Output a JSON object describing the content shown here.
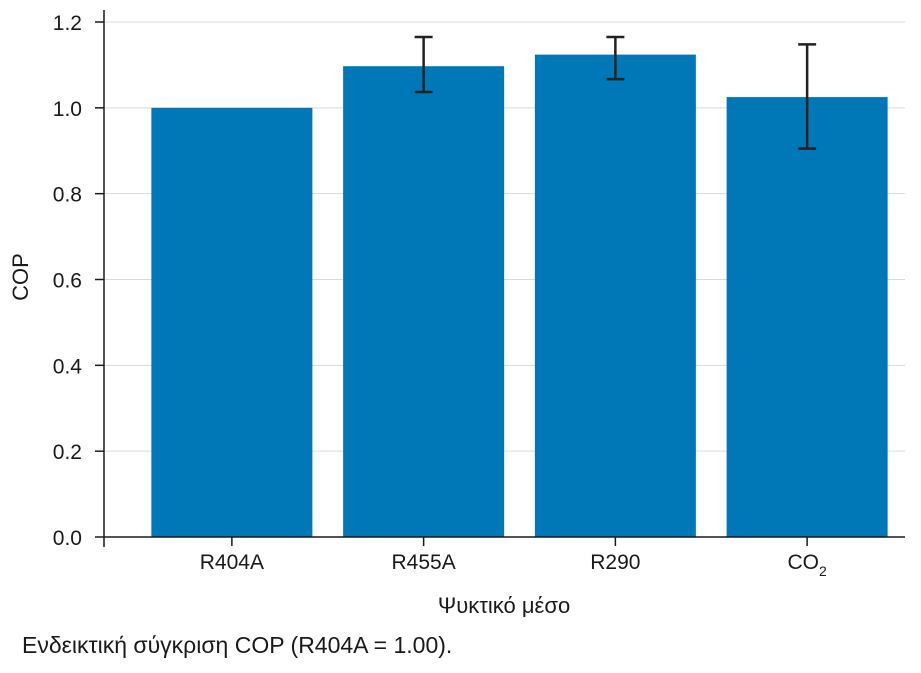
{
  "chart_data": {
    "type": "bar",
    "categories": [
      "R404A",
      "R455A",
      "R290",
      "CO"
    ],
    "category_subscripts": [
      "",
      "",
      "",
      "2"
    ],
    "values": [
      1.0,
      1.097,
      1.124,
      1.025
    ],
    "error_bars": [
      null,
      {
        "low": 1.037,
        "high": 1.165
      },
      {
        "low": 1.067,
        "high": 1.165
      },
      {
        "low": 0.905,
        "high": 1.148
      }
    ],
    "xlabel": "Ψυκτικό μέσο",
    "ylabel": "COP",
    "ylim": [
      0,
      1.2
    ],
    "yticks": [
      "0.0",
      "0.2",
      "0.4",
      "0.6",
      "0.8",
      "1.0",
      "1.2"
    ],
    "grid": true,
    "bar_color": "#0077b6",
    "gridline_color": "#d9d9d9",
    "errorbar_color": "#222222"
  },
  "caption": "Ενδεικτική σύγκριση COP (R404A = 1.00)."
}
